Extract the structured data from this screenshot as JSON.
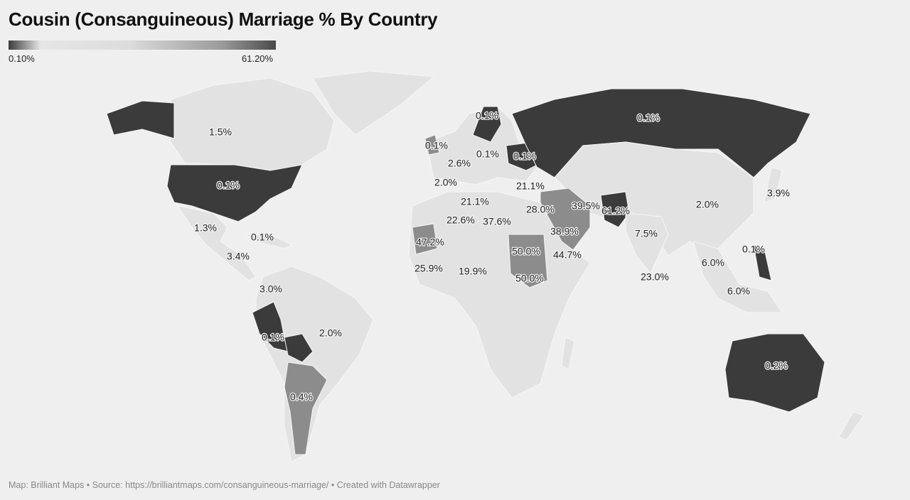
{
  "header": {
    "title": "Cousin (Consanguineous) Marriage % By Country"
  },
  "legend": {
    "min_label": "0.10%",
    "max_label": "61.20%"
  },
  "map_labels": [
    "1.5%",
    "0.1%",
    "0.1%",
    "0.1%",
    "0.1%",
    "0.1%",
    "2.6%",
    "2.0%",
    "21.1%",
    "0.1%",
    "21.1%",
    "28.0%",
    "39.5%",
    "61.2%",
    "2.0%",
    "3.9%",
    "1.3%",
    "0.1%",
    "22.6%",
    "37.6%",
    "38.9%",
    "7.5%",
    "47.2%",
    "50.0%",
    "44.7%",
    "0.1%",
    "3.4%",
    "6.0%",
    "25.9%",
    "19.9%",
    "50.0%",
    "23.0%",
    "3.0%",
    "6.0%",
    "2.0%",
    "0.1%",
    "0.2%",
    "0.4%"
  ],
  "footer": "Map: Brilliant Maps • Source: https://brilliantmaps.com/consanguineous-marriage/ • Created with Datawrapper"
}
